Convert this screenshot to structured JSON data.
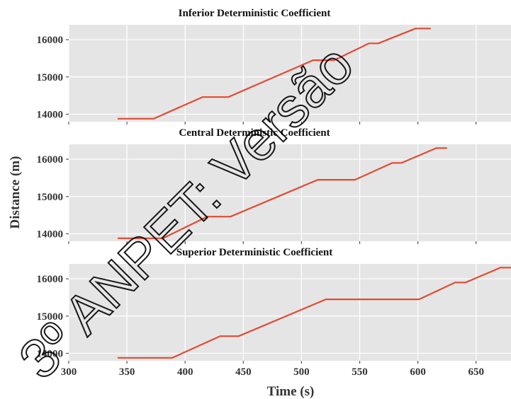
{
  "figure": {
    "ylabel": "Distance (m)",
    "xlabel": "Time (s)",
    "watermark": "3º ANPET: Versão"
  },
  "colors": {
    "panel_bg": "#e5e5e5",
    "grid": "#ffffff",
    "line": "#e24a33"
  },
  "chart_data": [
    {
      "type": "line",
      "title": "Inferior Deterministic Coefficient",
      "xlim": [
        300,
        680
      ],
      "ylim": [
        13800,
        16400
      ],
      "yticks": [
        14000,
        15000,
        16000
      ],
      "xticks": [
        300,
        350,
        400,
        450,
        500,
        550,
        600,
        650
      ],
      "show_xtick_labels": false,
      "x": [
        342,
        373,
        415,
        437,
        510,
        528,
        558,
        566,
        598,
        611
      ],
      "y": [
        13880,
        13880,
        14460,
        14460,
        15450,
        15450,
        15900,
        15900,
        16300,
        16300
      ]
    },
    {
      "type": "line",
      "title": "Central Deterministic Coefficient",
      "xlim": [
        300,
        680
      ],
      "ylim": [
        13800,
        16400
      ],
      "yticks": [
        14000,
        15000,
        16000
      ],
      "xticks": [
        300,
        350,
        400,
        450,
        500,
        550,
        600,
        650
      ],
      "show_xtick_labels": false,
      "x": [
        342,
        381,
        419,
        439,
        514,
        546,
        578,
        586,
        616,
        625
      ],
      "y": [
        13880,
        13880,
        14460,
        14460,
        15450,
        15450,
        15900,
        15900,
        16300,
        16300
      ]
    },
    {
      "type": "line",
      "title": "Superior Deterministic Coefficient",
      "xlim": [
        300,
        680
      ],
      "ylim": [
        13800,
        16400
      ],
      "yticks": [
        14000,
        15000,
        16000
      ],
      "xticks": [
        300,
        350,
        400,
        450,
        500,
        550,
        600,
        650
      ],
      "show_xtick_labels": true,
      "x": [
        342,
        389,
        430,
        446,
        521,
        601,
        632,
        641,
        671,
        680
      ],
      "y": [
        13880,
        13880,
        14460,
        14460,
        15450,
        15450,
        15900,
        15900,
        16300,
        16300
      ]
    }
  ]
}
